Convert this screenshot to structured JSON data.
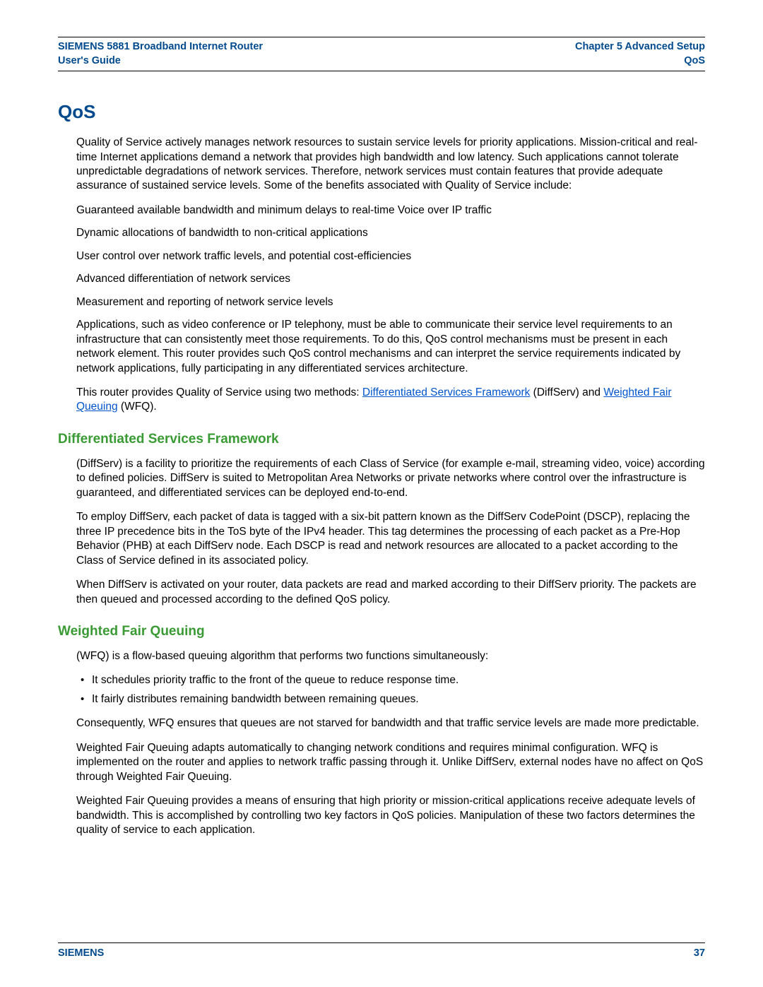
{
  "header": {
    "left_line1": "SIEMENS 5881 Broadband Internet Router",
    "left_line2": "User's Guide",
    "right_line1": "Chapter 5  Advanced Setup",
    "right_line2": "QoS"
  },
  "title": "QoS",
  "intro_para": "Quality of Service actively manages network resources to sustain service levels for priority applications. Mission-critical and real-time Internet applications demand a network that provides high bandwidth and low latency. Such applications cannot tolerate unpredictable degradations of network services. Therefore, network services must contain features that provide adequate assurance of sustained service levels. Some of the benefits associated with Quality of Service include:",
  "benefits": {
    "b1": "Guaranteed available bandwidth and minimum delays to real-time Voice over IP traffic",
    "b2": "Dynamic allocations of bandwidth to non-critical applications",
    "b3": "User control over network traffic levels, and potential cost-efficiencies",
    "b4": "Advanced differentiation of network services",
    "b5": "Measurement and reporting of network service levels"
  },
  "apps_para": "Applications, such as video conference or IP telephony, must be able to communicate their service level requirements to an infrastructure that can consistently meet those requirements. To do this, QoS control mechanisms must be present in each network element. This router provides such QoS control mechanisms and can interpret the service requirements indicated by network applications, fully participating in any differentiated services architecture.",
  "methods": {
    "prefix": "This router provides Quality of Service using two methods: ",
    "link1": "Differentiated Services Framework",
    "mid1": " (DiffServ) and ",
    "link2": "Weighted Fair Queuing",
    "suffix": " (WFQ)."
  },
  "diffserv": {
    "heading": "Differentiated Services Framework",
    "p1": "(DiffServ) is a facility to prioritize the requirements of each Class of Service (for example e-mail, streaming video, voice) according to defined policies. DiffServ is suited to Metropolitan Area Networks or private networks where control over the infrastructure is guaranteed, and differentiated services can be deployed end-to-end.",
    "p2": "To employ DiffServ, each packet of data is tagged with a six-bit pattern known as the DiffServ CodePoint (DSCP), replacing the three IP precedence bits in the ToS byte of the IPv4 header. This tag determines the processing of each packet as a Pre-Hop Behavior (PHB) at each DiffServ node. Each DSCP is read and network resources are allocated to a packet according to the Class of Service defined in its associated policy.",
    "p3": "When DiffServ is activated on your router, data packets are read and marked according to their DiffServ priority. The packets are then queued and processed according to the defined QoS policy."
  },
  "wfq": {
    "heading": "Weighted Fair Queuing",
    "p1": "(WFQ) is a flow-based queuing algorithm that performs two functions simultaneously:",
    "bullets": {
      "li1": "It schedules priority traffic to the front of the queue to reduce response time.",
      "li2": "It fairly distributes remaining bandwidth between remaining queues."
    },
    "p2": "Consequently, WFQ ensures that queues are not starved for bandwidth and that traffic service levels are made more predictable.",
    "p3": "Weighted Fair Queuing adapts automatically to changing network conditions and requires minimal configuration. WFQ is implemented on the router and applies to network traffic passing through it. Unlike DiffServ, external nodes have no affect on QoS through Weighted Fair Queuing.",
    "p4": "Weighted Fair Queuing provides a means of ensuring that high priority or mission-critical applications receive adequate levels of bandwidth. This is accomplished by controlling two key factors in QoS policies. Manipulation of these two factors determines the quality of service to each application."
  },
  "footer": {
    "brand": "SIEMENS",
    "page": "37"
  },
  "colors": {
    "brand_blue": "#004a8d",
    "section_green": "#3a9b35",
    "link_blue": "#0055cc",
    "text": "#000000",
    "background": "#ffffff"
  }
}
